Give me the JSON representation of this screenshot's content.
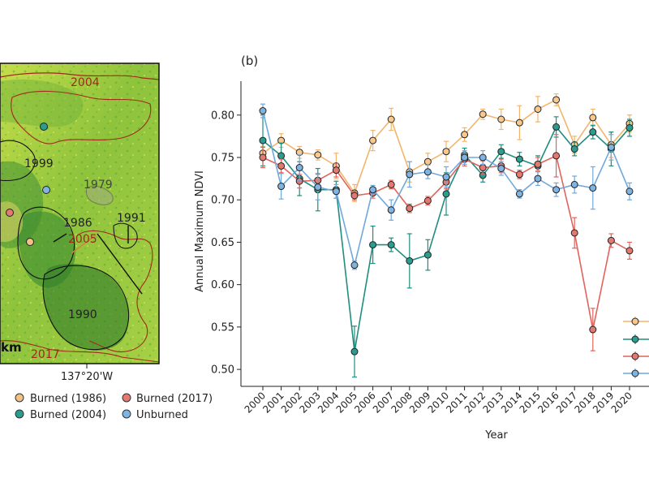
{
  "map": {
    "fire_labels": [
      "2004",
      "1999",
      "1979",
      "1986",
      "1991",
      "2005",
      "1990",
      "2017"
    ],
    "scale_text": "km",
    "lon_label": "137°20'W",
    "colors": {
      "vegetation": "#8cc63f",
      "vegetation_light": "#c8e05a",
      "border_2004": "#a02a1a",
      "boundary_black": "#111111",
      "burned_orange": "#e88a2a"
    }
  },
  "map_legend": [
    {
      "label": "Burned (1986)",
      "color": "#f2c185"
    },
    {
      "label": "Burned (2017)",
      "color": "#e27a72"
    },
    {
      "label": "Burned (2004)",
      "color": "#2a9d8f"
    },
    {
      "label": "Unburned",
      "color": "#7fb3e0"
    }
  ],
  "chart_data": {
    "type": "line",
    "panel_label": "(b)",
    "title": "",
    "xlabel": "Year",
    "ylabel": "Annual Maximum NDVI",
    "ylim": [
      0.48,
      0.84
    ],
    "yticks": [
      "0.80",
      "0.75",
      "0.70",
      "0.65",
      "0.60",
      "0.55",
      "0.50"
    ],
    "x": [
      "2000",
      "2001",
      "2002",
      "2003",
      "2004",
      "2005",
      "2006",
      "2007",
      "2008",
      "2009",
      "2010",
      "2011",
      "2012",
      "2013",
      "2014",
      "2015",
      "2016",
      "2017",
      "2018",
      "2019",
      "2020"
    ],
    "series": [
      {
        "name": "Burned (1986)",
        "color": "#f2b56b",
        "fill": "#f7c98f",
        "values": [
          0.755,
          0.77,
          0.756,
          0.753,
          0.74,
          0.708,
          0.77,
          0.795,
          0.733,
          0.745,
          0.757,
          0.777,
          0.801,
          0.795,
          0.791,
          0.807,
          0.818,
          0.765,
          0.797,
          0.765,
          0.79
        ],
        "errors": [
          0.008,
          0.008,
          0.007,
          0.006,
          0.015,
          0.01,
          0.012,
          0.013,
          0.012,
          0.01,
          0.012,
          0.008,
          0.006,
          0.012,
          0.02,
          0.015,
          0.007,
          0.01,
          0.01,
          0.015,
          0.01
        ]
      },
      {
        "name": "Burned (2004)",
        "color": "#1f8e7e",
        "fill": "#2a9d8f",
        "values": [
          0.77,
          0.752,
          0.725,
          0.712,
          0.712,
          0.521,
          0.647,
          0.647,
          0.628,
          0.635,
          0.707,
          0.753,
          0.729,
          0.757,
          0.748,
          0.74,
          0.786,
          0.76,
          0.78,
          0.76,
          0.785
        ],
        "errors": [
          0.03,
          0.015,
          0.02,
          0.025,
          0.01,
          0.03,
          0.022,
          0.008,
          0.032,
          0.018,
          0.025,
          0.008,
          0.008,
          0.008,
          0.008,
          0.012,
          0.012,
          0.008,
          0.008,
          0.02,
          0.01
        ]
      },
      {
        "name": "Burned (2017)",
        "color": "#e0645c",
        "fill": "#e27a72",
        "values": [
          0.75,
          0.74,
          0.722,
          0.723,
          0.735,
          0.705,
          0.708,
          0.718,
          0.69,
          0.699,
          0.721,
          0.748,
          0.738,
          0.74,
          0.73,
          0.742,
          0.752,
          0.661,
          0.547,
          0.652,
          0.64
        ],
        "errors": [
          0.012,
          0.008,
          0.008,
          0.008,
          0.008,
          0.005,
          0.006,
          0.005,
          0.005,
          0.005,
          0.008,
          0.008,
          0.008,
          0.008,
          0.005,
          0.008,
          0.025,
          0.018,
          0.025,
          0.008,
          0.01
        ]
      },
      {
        "name": "Unburned",
        "color": "#6fa8dc",
        "fill": "#7fb3e0",
        "values": [
          0.805,
          0.716,
          0.738,
          0.715,
          0.71,
          0.623,
          0.712,
          0.688,
          0.73,
          0.733,
          0.727,
          0.75,
          0.75,
          0.737,
          0.707,
          0.725,
          0.712,
          0.718,
          0.714,
          0.762,
          0.71
        ],
        "errors": [
          0.008,
          0.015,
          0.015,
          0.015,
          0.008,
          0.005,
          0.005,
          0.012,
          0.015,
          0.008,
          0.012,
          0.008,
          0.008,
          0.008,
          0.005,
          0.008,
          0.008,
          0.01,
          0.025,
          0.015,
          0.01
        ]
      }
    ]
  }
}
